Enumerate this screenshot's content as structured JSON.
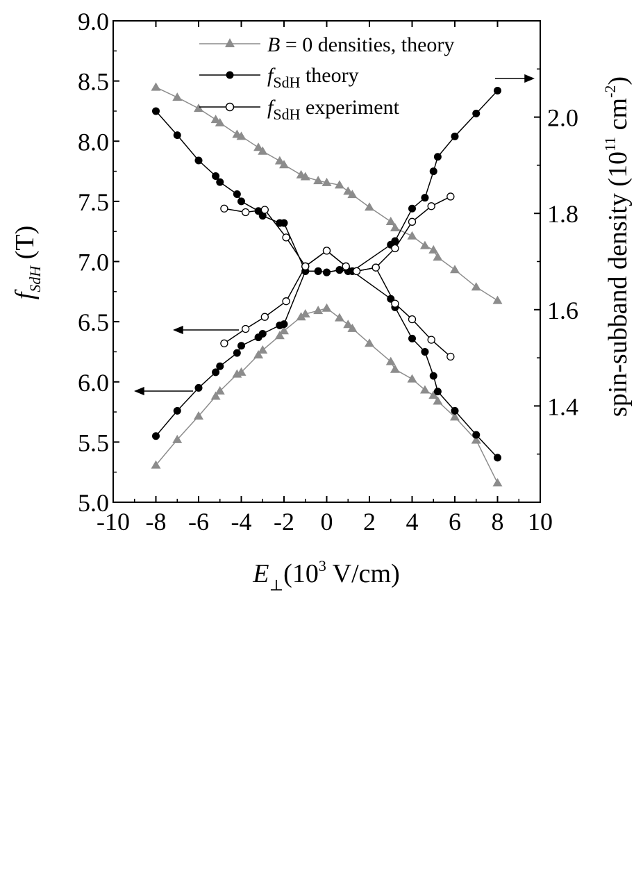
{
  "chart_data": {
    "type": "scatter",
    "x_axis": {
      "label_symbol": "E",
      "label_subscript": "⊥",
      "label_units": "(10",
      "label_units_exp": "3",
      "label_units_rest": " V/cm)",
      "range": [
        -10,
        10
      ],
      "ticks": [
        -10,
        -8,
        -6,
        -4,
        -2,
        0,
        2,
        4,
        6,
        8,
        10
      ],
      "tick_labels": [
        "-10",
        "-8",
        "-6",
        "-4",
        "-2",
        "0",
        "2",
        "4",
        "6",
        "8",
        "10"
      ]
    },
    "y_left": {
      "label_symbol": "f",
      "label_subscript": "SdH",
      "label_units": " (T)",
      "range": [
        5.0,
        9.0
      ],
      "ticks": [
        5.0,
        5.5,
        6.0,
        6.5,
        7.0,
        7.5,
        8.0,
        8.5,
        9.0
      ],
      "tick_labels": [
        "5.0",
        "5.5",
        "6.0",
        "6.5",
        "7.0",
        "7.5",
        "8.0",
        "8.5",
        "9.0"
      ]
    },
    "y_right": {
      "label": "spin-subband density (10",
      "label_exp1": "11",
      "label_mid": " cm",
      "label_exp2": "-2",
      "label_end": ")",
      "range": [
        1.2,
        2.2
      ],
      "ticks": [
        1.4,
        1.6,
        1.8,
        2.0
      ],
      "tick_labels": [
        "1.4",
        "1.6",
        "1.8",
        "2.0"
      ]
    },
    "legend": {
      "placement": "top-center",
      "entries": [
        {
          "prefix": "B",
          "text": " = 0 densities, theory",
          "marker": "triangle",
          "color": "#8c8c8c"
        },
        {
          "prefix": "f",
          "sub": "SdH",
          "text": " theory",
          "marker": "filled-circle",
          "color": "#000000"
        },
        {
          "prefix": "f",
          "sub": "SdH",
          "text": " experiment",
          "marker": "open-circle",
          "color": "#000000"
        }
      ]
    },
    "series": [
      {
        "name": "B = 0 densities, theory",
        "axis": "right",
        "marker": "triangle",
        "color": "#8c8c8c",
        "x": [
          -8,
          -7,
          -6,
          -5.2,
          -5,
          -4.2,
          -4,
          -3.2,
          -3,
          -2.2,
          -2,
          -1.2,
          -1,
          -0.4,
          0,
          0.6,
          1,
          1.2,
          2,
          3,
          3.2,
          4,
          4.6,
          5,
          5.2,
          6,
          7,
          8
        ],
        "y": [
          2.062,
          2.041,
          2.018,
          1.995,
          1.988,
          1.964,
          1.96,
          1.937,
          1.929,
          1.909,
          1.901,
          1.88,
          1.876,
          1.868,
          1.864,
          1.859,
          1.846,
          1.839,
          1.813,
          1.783,
          1.77,
          1.753,
          1.733,
          1.724,
          1.709,
          1.683,
          1.647,
          1.619
        ]
      },
      {
        "name": "B = 0 densities, theory",
        "axis": "right",
        "marker": "triangle",
        "color": "#8c8c8c",
        "x": [
          -8,
          -7,
          -6,
          -5.2,
          -5,
          -4.2,
          -4,
          -3.2,
          -3,
          -2.2,
          -2,
          -1.2,
          -1,
          -0.4,
          0,
          0.6,
          1,
          1.2,
          2,
          3,
          3.2,
          4,
          4.6,
          5,
          5.2,
          6,
          7,
          8
        ],
        "y": [
          1.277,
          1.33,
          1.379,
          1.42,
          1.431,
          1.466,
          1.47,
          1.506,
          1.516,
          1.546,
          1.556,
          1.585,
          1.591,
          1.598,
          1.603,
          1.583,
          1.569,
          1.561,
          1.53,
          1.492,
          1.476,
          1.456,
          1.433,
          1.422,
          1.41,
          1.377,
          1.329,
          1.24
        ]
      },
      {
        "name": "f_SdH theory, upper",
        "axis": "left",
        "marker": "filled-circle",
        "color": "#000000",
        "x": [
          -8,
          -7,
          -6,
          -5.2,
          -5,
          -4.2,
          -4,
          -3.2,
          -3,
          -2.2,
          -2,
          -1,
          -0.4,
          0,
          0.6,
          1,
          1.2,
          3,
          3.2,
          4,
          4.6,
          5,
          5.2,
          6,
          7,
          8
        ],
        "y": [
          8.25,
          8.05,
          7.84,
          7.71,
          7.66,
          7.56,
          7.5,
          7.42,
          7.38,
          7.32,
          7.32,
          6.92,
          6.92,
          6.91,
          6.93,
          6.92,
          6.92,
          7.14,
          7.17,
          7.44,
          7.53,
          7.75,
          7.87,
          8.04,
          8.23,
          8.42
        ]
      },
      {
        "name": "f_SdH theory, lower",
        "axis": "left",
        "marker": "filled-circle",
        "color": "#000000",
        "x": [
          -8,
          -7,
          -6,
          -5.2,
          -5,
          -4.2,
          -4,
          -3.2,
          -3,
          -2.2,
          -2,
          -1,
          -0.4,
          0,
          0.6,
          1,
          1.2,
          3,
          3.2,
          4,
          4.6,
          5,
          5.2,
          6,
          7,
          8
        ],
        "y": [
          5.55,
          5.76,
          5.95,
          6.08,
          6.13,
          6.24,
          6.3,
          6.37,
          6.4,
          6.47,
          6.48,
          6.92,
          6.92,
          6.91,
          6.93,
          6.92,
          6.92,
          6.69,
          6.62,
          6.36,
          6.25,
          6.05,
          5.92,
          5.76,
          5.56,
          5.37
        ]
      },
      {
        "name": "f_SdH experiment, upper",
        "axis": "left",
        "marker": "open-circle",
        "color": "#000000",
        "x": [
          -4.8,
          -3.8,
          -2.9,
          -1.9,
          -1.0,
          0,
          0.9,
          1.4,
          2.3,
          3.2,
          4.0,
          4.9,
          5.8
        ],
        "y": [
          7.44,
          7.41,
          7.43,
          7.2,
          6.96,
          7.09,
          6.96,
          6.92,
          6.95,
          7.11,
          7.33,
          7.46,
          7.54
        ]
      },
      {
        "name": "f_SdH experiment, lower",
        "axis": "left",
        "marker": "open-circle",
        "color": "#000000",
        "x": [
          -4.8,
          -3.8,
          -2.9,
          -1.9,
          -1.0,
          0,
          0.9,
          1.4,
          2.3,
          3.2,
          4.0,
          4.9,
          5.8
        ],
        "y": [
          6.32,
          6.44,
          6.54,
          6.67,
          6.96,
          7.09,
          6.96,
          6.92,
          6.95,
          6.65,
          6.52,
          6.35,
          6.21
        ]
      }
    ]
  }
}
